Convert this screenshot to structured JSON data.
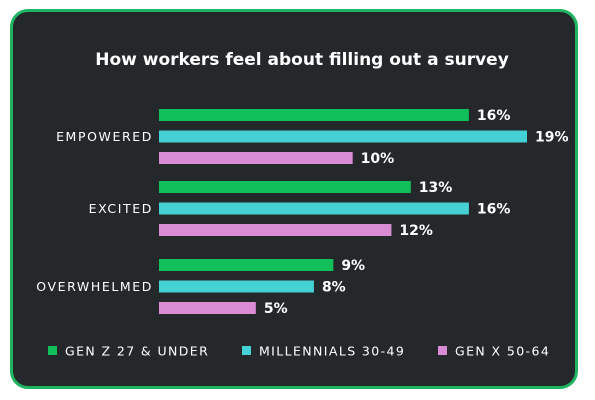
{
  "chart_data": {
    "type": "bar",
    "orientation": "horizontal",
    "title": "How workers feel about filling out a survey",
    "categories": [
      "EMPOWERED",
      "EXCITED",
      "OVERWHELMED"
    ],
    "series": [
      {
        "name": "GEN Z 27 & UNDER",
        "color": "#12c05b",
        "values": [
          16,
          13,
          9
        ]
      },
      {
        "name": "MILLENNIALS 30-49",
        "color": "#45d0d6",
        "values": [
          19,
          16,
          8
        ]
      },
      {
        "name": "GEN X 50-64",
        "color": "#d98bd3",
        "values": [
          10,
          12,
          5
        ]
      }
    ],
    "value_suffix": "%",
    "xlim": [
      0,
      19
    ],
    "grid": false,
    "legend_position": "bottom"
  },
  "colors": {
    "background": "#25282b",
    "border": "#1fb462",
    "text": "#ffffff"
  }
}
